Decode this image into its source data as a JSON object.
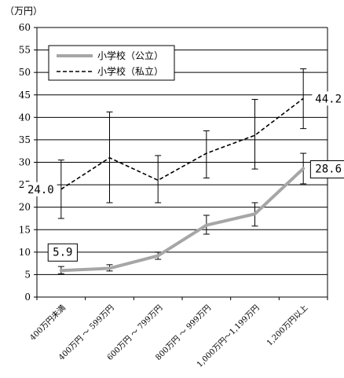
{
  "chart_data": {
    "type": "line",
    "title": "",
    "xlabel": "",
    "ylabel": "",
    "y_unit": "（万円）",
    "ylim": [
      0,
      60
    ],
    "yticks": [
      0,
      5,
      10,
      15,
      20,
      25,
      30,
      35,
      40,
      45,
      50,
      55,
      60
    ],
    "categories": [
      "400万円未満",
      "400万円 ～ 599万円",
      "600万円 ～ 799万円",
      "800万円 ～ 999万円",
      "1,000万円～1,199万円",
      "1,200万円以上"
    ],
    "grid": true,
    "legend_placement": "top-left",
    "series": [
      {
        "name": "小学校（公立）",
        "color": "#a6a6a6",
        "style": "solid",
        "values": [
          5.9,
          6.4,
          9.2,
          16.0,
          18.5,
          28.6
        ],
        "error_low": [
          5.2,
          5.8,
          8.4,
          14.0,
          15.8,
          25.2
        ],
        "error_high": [
          6.8,
          7.2,
          10.0,
          18.2,
          21.0,
          32.0
        ]
      },
      {
        "name": "小学校（私立）",
        "color": "#000000",
        "style": "dashed",
        "values": [
          24.0,
          31.0,
          26.0,
          32.0,
          36.0,
          44.2
        ],
        "error_low": [
          17.5,
          21.0,
          21.0,
          26.5,
          28.5,
          37.5
        ],
        "error_high": [
          30.5,
          41.2,
          31.5,
          37.0,
          44.0,
          50.8
        ]
      }
    ],
    "annotations": [
      {
        "series": 0,
        "index": 0,
        "text": "5.9",
        "boxed": true
      },
      {
        "series": 0,
        "index": 5,
        "text": "28.6",
        "boxed": true
      },
      {
        "series": 1,
        "index": 0,
        "text": "24.0",
        "boxed": false
      },
      {
        "series": 1,
        "index": 5,
        "text": "44.2",
        "boxed": false
      }
    ]
  }
}
